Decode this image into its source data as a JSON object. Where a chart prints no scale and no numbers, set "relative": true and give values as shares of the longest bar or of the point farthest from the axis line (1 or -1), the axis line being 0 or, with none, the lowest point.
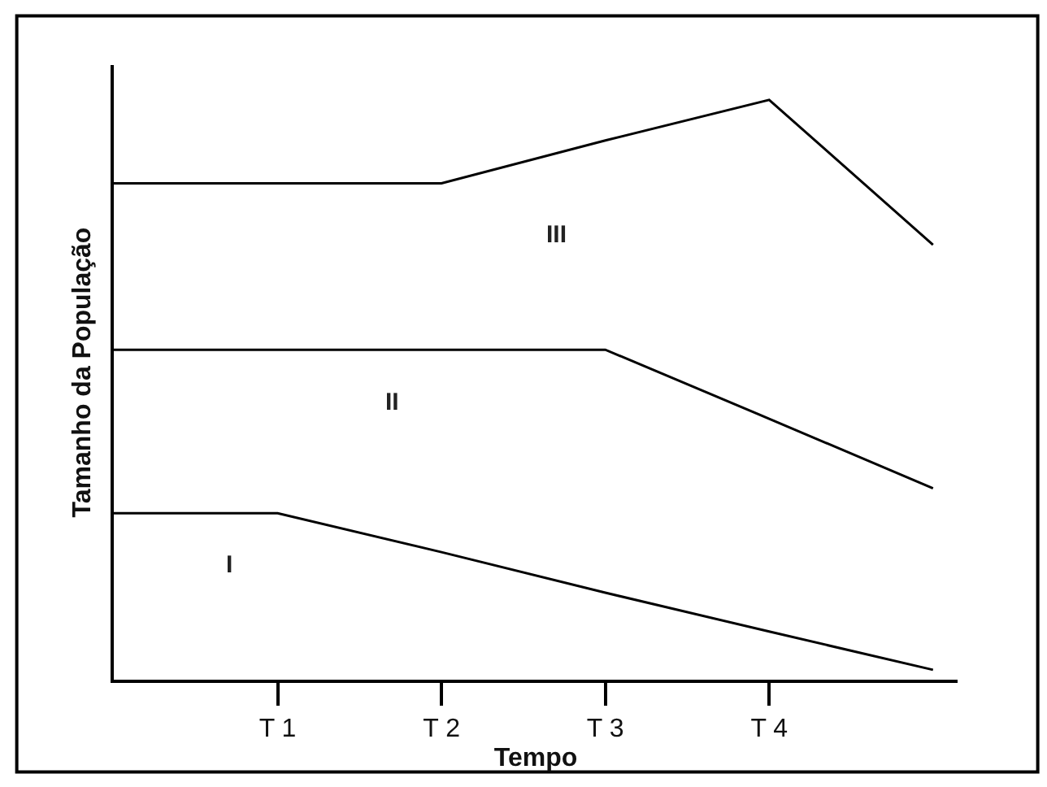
{
  "chart_data": {
    "type": "line",
    "relative": true,
    "xlabel": "Tempo",
    "ylabel": "Tamanho da População",
    "categories": [
      null,
      "T 1",
      "T 2",
      "T 3",
      "T 4",
      null
    ],
    "legend": false,
    "marker": "none",
    "line_style": "solid",
    "series": [
      {
        "name": "III",
        "color": "#000000",
        "values": [
          0.856,
          0.856,
          0.856,
          0.93,
          1,
          0.75
        ]
      },
      {
        "name": "II",
        "color": "#000000",
        "values": [
          0.569,
          0.569,
          0.569,
          0.569,
          0.45,
          0.33
        ]
      },
      {
        "name": "I",
        "color": "#000000",
        "values": [
          0.287,
          0.287,
          0.22,
          0.15,
          0.083,
          0.017
        ]
      }
    ]
  }
}
